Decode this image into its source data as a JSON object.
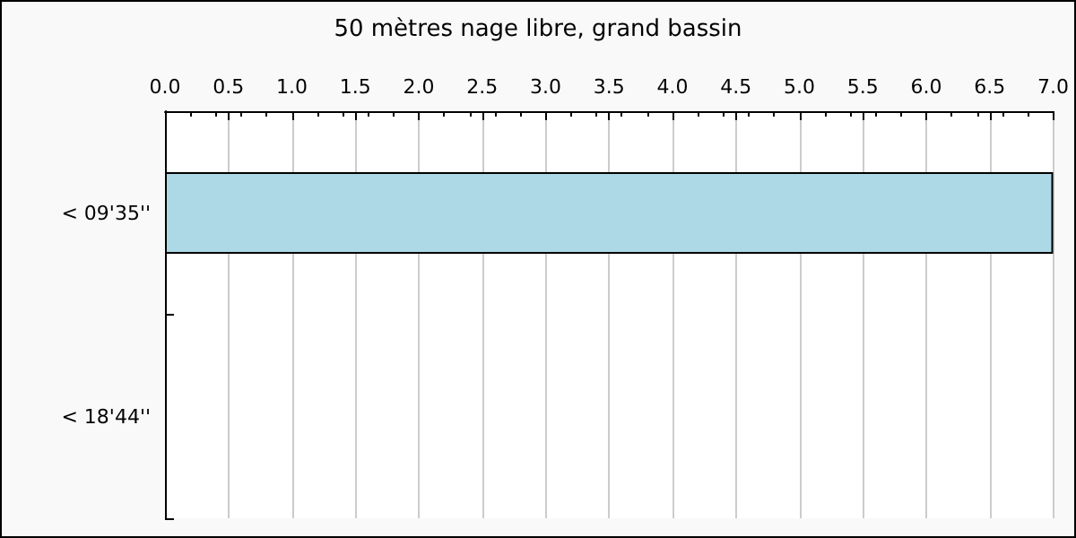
{
  "chart_data": {
    "type": "bar",
    "orientation": "horizontal",
    "title": "50 mètres nage libre, grand bassin",
    "categories": [
      "< 09'35''",
      "< 18'44''"
    ],
    "values": [
      7,
      0
    ],
    "color": "#add8e6",
    "xlim": [
      0,
      7
    ],
    "xticks": [
      {
        "value": 0,
        "label": "0.0"
      },
      {
        "value": 0.5,
        "label": "0.5"
      },
      {
        "value": 1,
        "label": "1.0"
      },
      {
        "value": 1.5,
        "label": "1.5"
      },
      {
        "value": 2,
        "label": "2.0"
      },
      {
        "value": 2.5,
        "label": "2.5"
      },
      {
        "value": 3,
        "label": "3.0"
      },
      {
        "value": 3.5,
        "label": "3.5"
      },
      {
        "value": 4,
        "label": "4.0"
      },
      {
        "value": 4.5,
        "label": "4.5"
      },
      {
        "value": 5,
        "label": "5.0"
      },
      {
        "value": 5.5,
        "label": "5.5"
      },
      {
        "value": 6,
        "label": "6.0"
      },
      {
        "value": 6.5,
        "label": "6.5"
      },
      {
        "value": 7,
        "label": "7.0"
      }
    ],
    "grid": "x"
  }
}
